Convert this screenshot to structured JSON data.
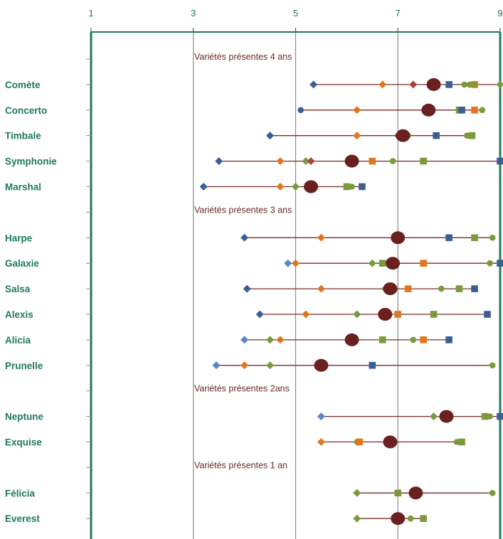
{
  "chart_data": {
    "type": "scatter",
    "xlim": [
      1,
      9
    ],
    "x_ticks": [
      1,
      3,
      5,
      7,
      9
    ],
    "x_tick_labels": [
      "1",
      "3",
      "5",
      "7",
      "9"
    ],
    "axis_position": "top",
    "grid": true,
    "colors": {
      "axis": "#1f7a5a",
      "grid": "#8c8c8c",
      "line": "#7a2a2a",
      "mean": "#6b2020",
      "navy": "#3a5f94",
      "blue": "#5b86c8",
      "orange": "#e0771f",
      "green": "#7a9a3c",
      "red": "#a84242",
      "category_label": "#1f7a5a",
      "group_label": "#6b2a2a"
    },
    "groups": [
      {
        "label": "Variétés présentes 4 ans",
        "row": 1
      },
      {
        "label": "Variétés présentes 3 ans",
        "row": 7
      },
      {
        "label": "Variétés présentes 2ans",
        "row": 14
      },
      {
        "label": "Variétés présentes 1 an",
        "row": 17
      }
    ],
    "rows": [
      {
        "name": "Comète",
        "row": 2,
        "min": 5.35,
        "max": 9.0,
        "mean": 7.7,
        "points": [
          [
            5.35,
            "navy",
            "diamond"
          ],
          [
            6.7,
            "orange",
            "diamond"
          ],
          [
            7.3,
            "red",
            "diamond"
          ],
          [
            8.0,
            "navy",
            "square"
          ],
          [
            8.3,
            "green",
            "circle"
          ],
          [
            8.4,
            "green",
            "circle"
          ],
          [
            8.5,
            "orange",
            "square"
          ],
          [
            8.5,
            "green",
            "diamond"
          ],
          [
            9.0,
            "green",
            "diamond"
          ]
        ]
      },
      {
        "name": "Concerto",
        "row": 3,
        "min": 5.1,
        "max": 8.65,
        "mean": 7.6,
        "points": [
          [
            5.1,
            "navy",
            "circle"
          ],
          [
            6.2,
            "orange",
            "diamond"
          ],
          [
            8.2,
            "green",
            "square"
          ],
          [
            8.25,
            "navy",
            "square"
          ],
          [
            8.5,
            "orange",
            "square"
          ],
          [
            8.65,
            "green",
            "circle"
          ]
        ]
      },
      {
        "name": "Timbale",
        "row": 4,
        "min": 4.5,
        "max": 8.5,
        "mean": 7.1,
        "points": [
          [
            4.5,
            "navy",
            "diamond"
          ],
          [
            6.2,
            "orange",
            "diamond"
          ],
          [
            7.0,
            "red",
            "diamond"
          ],
          [
            7.2,
            "green",
            "circle"
          ],
          [
            7.75,
            "navy",
            "square"
          ],
          [
            8.35,
            "green",
            "circle"
          ],
          [
            8.45,
            "green",
            "square"
          ]
        ]
      },
      {
        "name": "Symphonie",
        "row": 5,
        "min": 3.5,
        "max": 9.0,
        "mean": 6.1,
        "points": [
          [
            3.5,
            "navy",
            "diamond"
          ],
          [
            4.7,
            "orange",
            "diamond"
          ],
          [
            5.2,
            "green",
            "diamond"
          ],
          [
            5.3,
            "red",
            "diamond"
          ],
          [
            6.5,
            "orange",
            "square"
          ],
          [
            6.9,
            "green",
            "circle"
          ],
          [
            7.5,
            "green",
            "square"
          ],
          [
            9.0,
            "navy",
            "square"
          ]
        ]
      },
      {
        "name": "Marshal",
        "row": 6,
        "min": 3.2,
        "max": 6.3,
        "mean": 5.3,
        "points": [
          [
            3.2,
            "navy",
            "diamond"
          ],
          [
            4.7,
            "orange",
            "diamond"
          ],
          [
            5.0,
            "green",
            "diamond"
          ],
          [
            6.0,
            "green",
            "square"
          ],
          [
            6.1,
            "green",
            "circle"
          ],
          [
            6.3,
            "navy",
            "square"
          ]
        ]
      },
      {
        "name": "Harpe",
        "row": 8,
        "min": 4.0,
        "max": 8.85,
        "mean": 7.0,
        "points": [
          [
            4.0,
            "navy",
            "diamond"
          ],
          [
            5.5,
            "orange",
            "diamond"
          ],
          [
            8.0,
            "navy",
            "square"
          ],
          [
            8.5,
            "green",
            "square"
          ],
          [
            8.85,
            "green",
            "circle"
          ]
        ]
      },
      {
        "name": "Galaxie",
        "row": 9,
        "min": 4.85,
        "max": 9.0,
        "mean": 6.9,
        "points": [
          [
            4.85,
            "blue",
            "diamond"
          ],
          [
            5.0,
            "orange",
            "diamond"
          ],
          [
            6.5,
            "green",
            "diamond"
          ],
          [
            6.7,
            "green",
            "square"
          ],
          [
            7.5,
            "orange",
            "square"
          ],
          [
            8.8,
            "green",
            "circle"
          ],
          [
            9.0,
            "navy",
            "square"
          ]
        ]
      },
      {
        "name": "Salsa",
        "row": 10,
        "min": 4.05,
        "max": 8.5,
        "mean": 6.85,
        "points": [
          [
            4.05,
            "navy",
            "diamond"
          ],
          [
            5.5,
            "orange",
            "diamond"
          ],
          [
            6.75,
            "green",
            "diamond"
          ],
          [
            7.2,
            "orange",
            "square"
          ],
          [
            7.85,
            "green",
            "circle"
          ],
          [
            8.2,
            "green",
            "square"
          ],
          [
            8.5,
            "navy",
            "square"
          ]
        ]
      },
      {
        "name": "Alexis",
        "row": 11,
        "min": 4.3,
        "max": 8.75,
        "mean": 6.75,
        "points": [
          [
            4.3,
            "navy",
            "diamond"
          ],
          [
            5.2,
            "orange",
            "diamond"
          ],
          [
            6.2,
            "green",
            "diamond"
          ],
          [
            7.0,
            "orange",
            "square"
          ],
          [
            7.7,
            "green",
            "square"
          ],
          [
            8.75,
            "navy",
            "square"
          ]
        ]
      },
      {
        "name": "Alicia",
        "row": 12,
        "min": 4.0,
        "max": 8.0,
        "mean": 6.1,
        "points": [
          [
            4.0,
            "blue",
            "diamond"
          ],
          [
            4.5,
            "green",
            "diamond"
          ],
          [
            4.7,
            "orange",
            "diamond"
          ],
          [
            6.7,
            "green",
            "square"
          ],
          [
            7.3,
            "green",
            "circle"
          ],
          [
            7.5,
            "orange",
            "square"
          ],
          [
            8.0,
            "navy",
            "square"
          ]
        ]
      },
      {
        "name": "Prunelle",
        "row": 13,
        "min": 3.45,
        "max": 8.85,
        "mean": 5.5,
        "points": [
          [
            3.45,
            "blue",
            "diamond"
          ],
          [
            4.0,
            "orange",
            "diamond"
          ],
          [
            4.5,
            "green",
            "diamond"
          ],
          [
            6.5,
            "navy",
            "square"
          ],
          [
            8.85,
            "green",
            "circle"
          ]
        ]
      },
      {
        "name": "Neptune",
        "row": 15,
        "min": 5.5,
        "max": 9.0,
        "mean": 7.95,
        "points": [
          [
            5.5,
            "blue",
            "diamond"
          ],
          [
            7.7,
            "green",
            "diamond"
          ],
          [
            8.7,
            "green",
            "square"
          ],
          [
            8.8,
            "green",
            "circle"
          ],
          [
            9.0,
            "navy",
            "square"
          ]
        ]
      },
      {
        "name": "Exquise",
        "row": 16,
        "min": 5.5,
        "max": 8.25,
        "mean": 6.85,
        "points": [
          [
            5.5,
            "orange",
            "diamond"
          ],
          [
            6.2,
            "green",
            "diamond"
          ],
          [
            6.25,
            "orange",
            "square"
          ],
          [
            8.15,
            "green",
            "circle"
          ],
          [
            8.25,
            "green",
            "square"
          ]
        ]
      },
      {
        "name": "Félicia",
        "row": 18,
        "min": 6.2,
        "max": 8.85,
        "mean": 7.35,
        "points": [
          [
            6.2,
            "green",
            "diamond"
          ],
          [
            7.0,
            "green",
            "square"
          ],
          [
            8.85,
            "green",
            "circle"
          ]
        ]
      },
      {
        "name": "Everest",
        "row": 19,
        "min": 6.2,
        "max": 7.5,
        "mean": 7.0,
        "points": [
          [
            6.2,
            "green",
            "diamond"
          ],
          [
            7.25,
            "green",
            "circle"
          ],
          [
            7.5,
            "green",
            "square"
          ]
        ]
      }
    ]
  }
}
